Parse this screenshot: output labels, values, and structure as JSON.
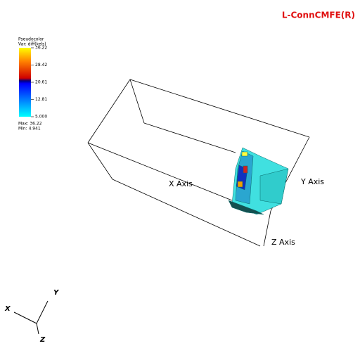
{
  "header": {
    "title": "L-ConnCMFE(R)"
  },
  "legend": {
    "plot": "Pseudocolor",
    "variable": "Var: diff(kels)",
    "labels": [
      "36.22",
      "28.42",
      "20.61",
      "12.81",
      "5.000"
    ],
    "max": "Max: 36.22",
    "min": "Min: 4.941"
  },
  "axes": {
    "x": "X Axis",
    "y": "Y Axis",
    "z": "Z Axis"
  },
  "triad": {
    "x": "X",
    "y": "Y",
    "z": "Z"
  }
}
